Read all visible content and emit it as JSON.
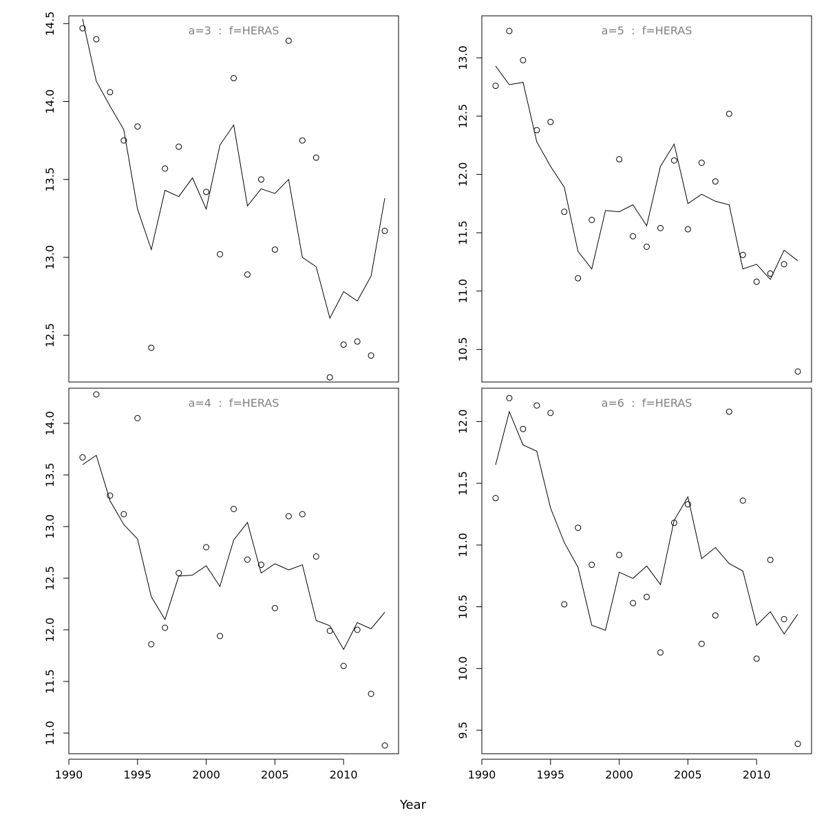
{
  "xlabel": "Year",
  "colors": {
    "line": "#000000",
    "points": "#000000",
    "title": "#808080",
    "frame": "#000000"
  },
  "chart_data": [
    {
      "type": "line",
      "title": "a=3  :  f=HERAS",
      "xlim": [
        1990,
        2014
      ],
      "ylim": [
        12.2,
        14.55
      ],
      "xticks": [
        1990,
        1995,
        2000,
        2005,
        2010
      ],
      "xtick_labels": [
        "1990",
        "1995",
        "2000",
        "2005",
        "2010"
      ],
      "show_xticks": false,
      "yticks": [
        12.5,
        13.0,
        13.5,
        14.0,
        14.5
      ],
      "ytick_labels": [
        "12.5",
        "13.0",
        "13.5",
        "14.0",
        "14.5"
      ],
      "x": [
        1991,
        1992,
        1993,
        1994,
        1995,
        1996,
        1997,
        1998,
        1999,
        2000,
        2001,
        2002,
        2003,
        2004,
        2005,
        2006,
        2007,
        2008,
        2009,
        2010,
        2011,
        2012,
        2013
      ],
      "series": [
        {
          "kind": "points",
          "values": [
            14.47,
            14.4,
            14.06,
            13.75,
            13.84,
            12.42,
            13.57,
            13.71,
            null,
            13.42,
            13.02,
            14.15,
            12.89,
            13.5,
            13.05,
            14.39,
            13.75,
            13.64,
            12.23,
            12.44,
            12.46,
            12.37,
            13.17
          ]
        },
        {
          "kind": "line",
          "values": [
            14.53,
            14.13,
            13.97,
            13.82,
            13.31,
            13.05,
            13.43,
            13.39,
            13.51,
            13.31,
            13.72,
            13.85,
            13.33,
            13.44,
            13.41,
            13.5,
            13.0,
            12.94,
            12.61,
            12.78,
            12.72,
            12.88,
            13.38
          ]
        }
      ]
    },
    {
      "type": "line",
      "title": "a=5  :  f=HERAS",
      "xlim": [
        1990,
        2014
      ],
      "ylim": [
        10.22,
        13.36
      ],
      "xticks": [
        1990,
        1995,
        2000,
        2005,
        2010
      ],
      "xtick_labels": [
        "1990",
        "1995",
        "2000",
        "2005",
        "2010"
      ],
      "show_xticks": false,
      "yticks": [
        10.5,
        11.0,
        11.5,
        12.0,
        12.5,
        13.0
      ],
      "ytick_labels": [
        "10.5",
        "11.0",
        "11.5",
        "12.0",
        "12.5",
        "13.0"
      ],
      "x": [
        1991,
        1992,
        1993,
        1994,
        1995,
        1996,
        1997,
        1998,
        1999,
        2000,
        2001,
        2002,
        2003,
        2004,
        2005,
        2006,
        2007,
        2008,
        2009,
        2010,
        2011,
        2012,
        2013
      ],
      "series": [
        {
          "kind": "points",
          "values": [
            12.76,
            13.23,
            12.98,
            12.38,
            12.45,
            11.68,
            11.11,
            11.61,
            null,
            12.13,
            11.47,
            11.38,
            11.54,
            12.12,
            11.53,
            12.1,
            11.94,
            12.52,
            11.31,
            11.08,
            11.15,
            11.23,
            10.31
          ]
        },
        {
          "kind": "line",
          "values": [
            12.93,
            12.77,
            12.79,
            12.28,
            12.07,
            11.89,
            11.34,
            11.19,
            11.69,
            11.68,
            11.74,
            11.56,
            12.07,
            12.26,
            11.75,
            11.83,
            11.77,
            11.74,
            11.19,
            11.23,
            11.1,
            11.35,
            11.26
          ]
        }
      ]
    },
    {
      "type": "line",
      "title": "a=4  :  f=HERAS",
      "xlim": [
        1990,
        2014
      ],
      "ylim": [
        10.8,
        14.34
      ],
      "xticks": [
        1990,
        1995,
        2000,
        2005,
        2010
      ],
      "xtick_labels": [
        "1990",
        "1995",
        "2000",
        "2005",
        "2010"
      ],
      "show_xticks": true,
      "yticks": [
        11.0,
        11.5,
        12.0,
        12.5,
        13.0,
        13.5,
        14.0
      ],
      "ytick_labels": [
        "11.0",
        "11.5",
        "12.0",
        "12.5",
        "13.0",
        "13.5",
        "14.0"
      ],
      "x": [
        1991,
        1992,
        1993,
        1994,
        1995,
        1996,
        1997,
        1998,
        1999,
        2000,
        2001,
        2002,
        2003,
        2004,
        2005,
        2006,
        2007,
        2008,
        2009,
        2010,
        2011,
        2012,
        2013
      ],
      "series": [
        {
          "kind": "points",
          "values": [
            13.67,
            14.28,
            13.3,
            13.12,
            14.05,
            11.86,
            12.02,
            12.55,
            null,
            12.8,
            11.94,
            13.17,
            12.68,
            12.63,
            12.21,
            13.1,
            13.12,
            12.71,
            11.99,
            11.65,
            12.0,
            11.38,
            10.88
          ]
        },
        {
          "kind": "line",
          "values": [
            13.6,
            13.69,
            13.25,
            13.02,
            12.88,
            12.32,
            12.1,
            12.52,
            12.53,
            12.62,
            12.42,
            12.87,
            13.04,
            12.55,
            12.64,
            12.58,
            12.63,
            12.09,
            12.04,
            11.81,
            12.07,
            12.01,
            12.17
          ]
        }
      ]
    },
    {
      "type": "line",
      "title": "a=6  :  f=HERAS",
      "xlim": [
        1990,
        2014
      ],
      "ylim": [
        9.31,
        12.27
      ],
      "xticks": [
        1990,
        1995,
        2000,
        2005,
        2010
      ],
      "xtick_labels": [
        "1990",
        "1995",
        "2000",
        "2005",
        "2010"
      ],
      "show_xticks": true,
      "yticks": [
        9.5,
        10.0,
        10.5,
        11.0,
        11.5,
        12.0
      ],
      "ytick_labels": [
        "9.5",
        "10.0",
        "10.5",
        "11.0",
        "11.5",
        "12.0"
      ],
      "x": [
        1991,
        1992,
        1993,
        1994,
        1995,
        1996,
        1997,
        1998,
        1999,
        2000,
        2001,
        2002,
        2003,
        2004,
        2005,
        2006,
        2007,
        2008,
        2009,
        2010,
        2011,
        2012,
        2013
      ],
      "series": [
        {
          "kind": "points",
          "values": [
            11.38,
            12.19,
            11.94,
            12.13,
            12.07,
            10.52,
            11.14,
            10.84,
            null,
            10.92,
            10.53,
            10.58,
            10.13,
            11.18,
            11.33,
            10.2,
            10.43,
            12.08,
            11.36,
            10.08,
            10.88,
            10.4,
            9.39
          ]
        },
        {
          "kind": "line",
          "values": [
            11.65,
            12.08,
            11.81,
            11.76,
            11.3,
            11.02,
            10.82,
            10.35,
            10.31,
            10.78,
            10.73,
            10.83,
            10.68,
            11.2,
            11.39,
            10.89,
            10.98,
            10.85,
            10.79,
            10.35,
            10.46,
            10.28,
            10.44
          ]
        }
      ]
    }
  ]
}
